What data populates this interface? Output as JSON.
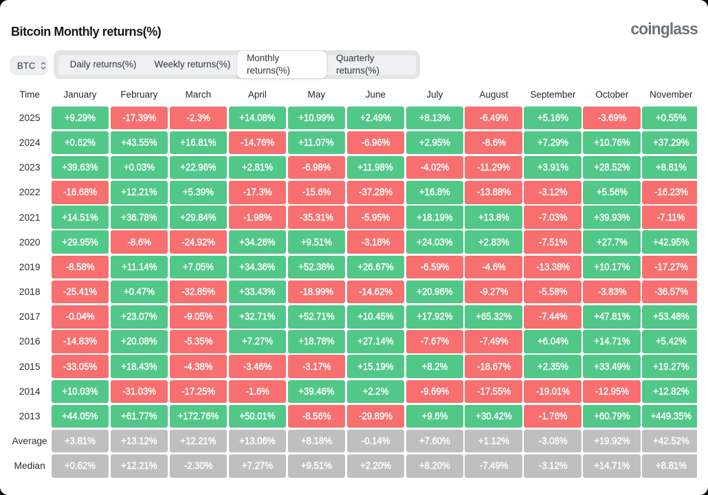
{
  "header": {
    "title": "Bitcoin Monthly returns(%)",
    "logo": "coinglass"
  },
  "controls": {
    "symbol": "BTC",
    "symbol_arrows_icon": "unfold-arrows-icon"
  },
  "tabs": [
    {
      "label": "Daily returns(%)",
      "active": false
    },
    {
      "label": "Weekly returns(%)",
      "active": false
    },
    {
      "label": "Monthly returns(%)",
      "active": true
    },
    {
      "label": "Quarterly returns(%)",
      "active": false
    }
  ],
  "colors": {
    "positive": "#51c788",
    "negative": "#f76f6f",
    "stat_row": "#bfbfc0",
    "card_background": "#ffffff"
  },
  "chart_data": {
    "type": "heatmap",
    "title": "Bitcoin Monthly returns(%)",
    "corner_label": "Time",
    "columns": [
      "January",
      "February",
      "March",
      "April",
      "May",
      "June",
      "July",
      "August",
      "September",
      "October",
      "November"
    ],
    "rows": [
      {
        "label": "2025",
        "kind": "year",
        "values": [
          "+9.29%",
          "-17.39%",
          "-2.3%",
          "+14.08%",
          "+10.99%",
          "+2.49%",
          "+8.13%",
          "-6.49%",
          "+5.16%",
          "-3.69%",
          "+0.55%"
        ]
      },
      {
        "label": "2024",
        "kind": "year",
        "values": [
          "+0.62%",
          "+43.55%",
          "+16.81%",
          "-14.76%",
          "+11.07%",
          "-6.96%",
          "+2.95%",
          "-8.6%",
          "+7.29%",
          "+10.76%",
          "+37.29%"
        ]
      },
      {
        "label": "2023",
        "kind": "year",
        "values": [
          "+39.63%",
          "+0.03%",
          "+22.96%",
          "+2.81%",
          "-6.98%",
          "+11.98%",
          "-4.02%",
          "-11.29%",
          "+3.91%",
          "+28.52%",
          "+8.81%"
        ]
      },
      {
        "label": "2022",
        "kind": "year",
        "values": [
          "-16.68%",
          "+12.21%",
          "+5.39%",
          "-17.3%",
          "-15.6%",
          "-37.28%",
          "+16.8%",
          "-13.88%",
          "-3.12%",
          "+5.56%",
          "-16.23%"
        ]
      },
      {
        "label": "2021",
        "kind": "year",
        "values": [
          "+14.51%",
          "+36.78%",
          "+29.84%",
          "-1.98%",
          "-35.31%",
          "-5.95%",
          "+18.19%",
          "+13.8%",
          "-7.03%",
          "+39.93%",
          "-7.11%"
        ]
      },
      {
        "label": "2020",
        "kind": "year",
        "values": [
          "+29.95%",
          "-8.6%",
          "-24.92%",
          "+34.26%",
          "+9.51%",
          "-3.18%",
          "+24.03%",
          "+2.83%",
          "-7.51%",
          "+27.7%",
          "+42.95%"
        ]
      },
      {
        "label": "2019",
        "kind": "year",
        "values": [
          "-8.58%",
          "+11.14%",
          "+7.05%",
          "+34.36%",
          "+52.38%",
          "+26.67%",
          "-6.59%",
          "-4.6%",
          "-13.38%",
          "+10.17%",
          "-17.27%"
        ]
      },
      {
        "label": "2018",
        "kind": "year",
        "values": [
          "-25.41%",
          "+0.47%",
          "-32.85%",
          "+33.43%",
          "-18.99%",
          "-14.62%",
          "+20.96%",
          "-9.27%",
          "-5.58%",
          "-3.83%",
          "-36.57%"
        ]
      },
      {
        "label": "2017",
        "kind": "year",
        "values": [
          "-0.04%",
          "+23.07%",
          "-9.05%",
          "+32.71%",
          "+52.71%",
          "+10.45%",
          "+17.92%",
          "+65.32%",
          "-7.44%",
          "+47.81%",
          "+53.48%"
        ]
      },
      {
        "label": "2016",
        "kind": "year",
        "values": [
          "-14.83%",
          "+20.08%",
          "-5.35%",
          "+7.27%",
          "+18.78%",
          "+27.14%",
          "-7.67%",
          "-7.49%",
          "+6.04%",
          "+14.71%",
          "+5.42%"
        ]
      },
      {
        "label": "2015",
        "kind": "year",
        "values": [
          "-33.05%",
          "+18.43%",
          "-4.38%",
          "-3.46%",
          "-3.17%",
          "+15.19%",
          "+8.2%",
          "-18.67%",
          "+2.35%",
          "+33.49%",
          "+19.27%"
        ]
      },
      {
        "label": "2014",
        "kind": "year",
        "values": [
          "+10.03%",
          "-31.03%",
          "-17.25%",
          "-1.6%",
          "+39.46%",
          "+2.2%",
          "-9.69%",
          "-17.55%",
          "-19.01%",
          "-12.95%",
          "+12.82%"
        ]
      },
      {
        "label": "2013",
        "kind": "year",
        "values": [
          "+44.05%",
          "+61.77%",
          "+172.76%",
          "+50.01%",
          "-8.56%",
          "-29.89%",
          "+9.6%",
          "+30.42%",
          "-1.76%",
          "+60.79%",
          "+449.35%"
        ]
      },
      {
        "label": "Average",
        "kind": "stat",
        "values": [
          "+3.81%",
          "+13.12%",
          "+12.21%",
          "+13.06%",
          "+8.18%",
          "-0.14%",
          "+7.60%",
          "+1.12%",
          "-3.08%",
          "+19.92%",
          "+42.52%"
        ]
      },
      {
        "label": "Median",
        "kind": "stat",
        "values": [
          "+0.62%",
          "+12.21%",
          "-2.30%",
          "+7.27%",
          "+9.51%",
          "+2.20%",
          "+8.20%",
          "-7.49%",
          "-3.12%",
          "+14.71%",
          "+8.81%"
        ]
      }
    ]
  }
}
